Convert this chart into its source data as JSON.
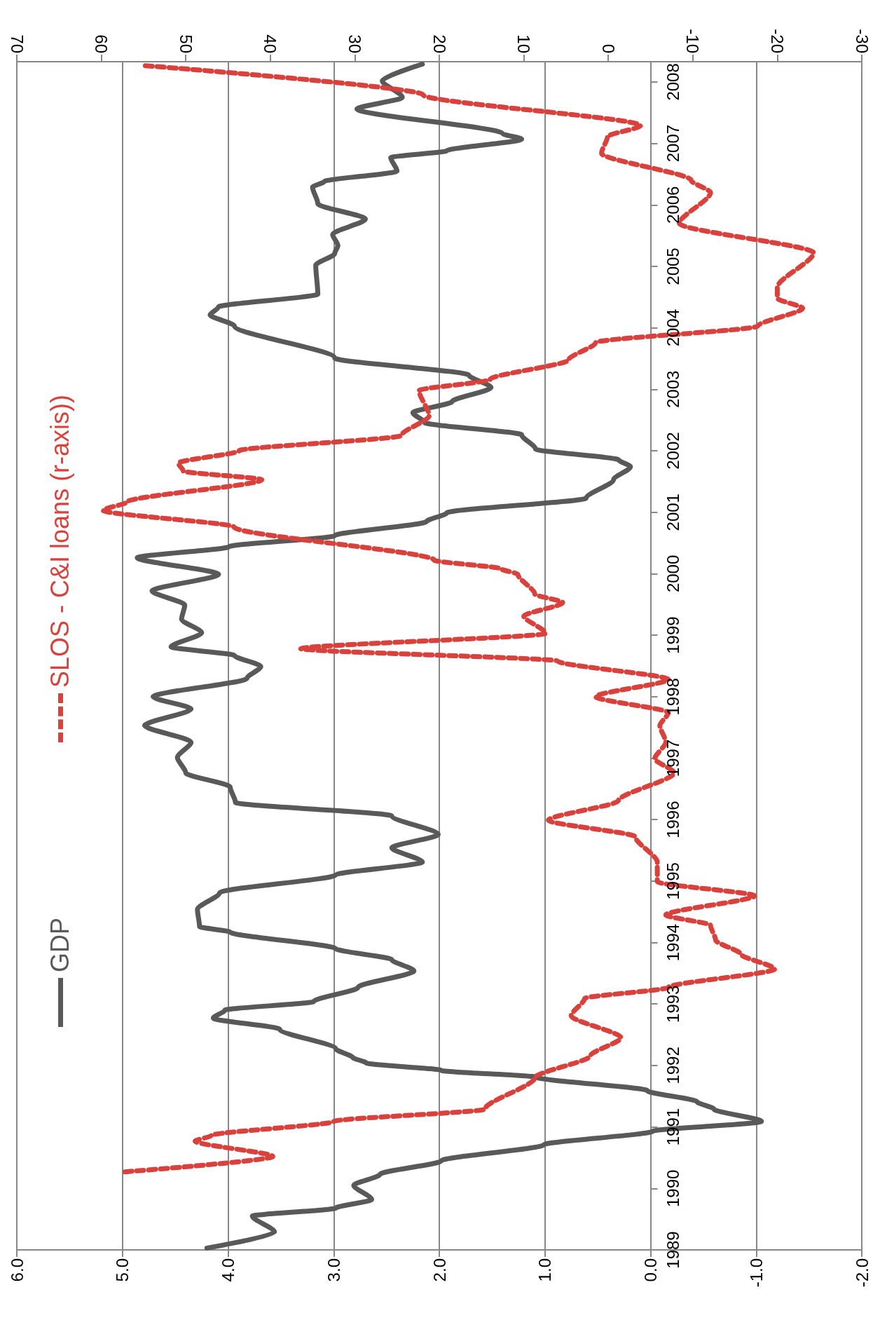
{
  "chart_data": {
    "type": "line",
    "xlim": [
      6,
      -2
    ],
    "xticks": [
      {
        "value": 6,
        "label": "6.0"
      },
      {
        "value": 5,
        "label": "5.0"
      },
      {
        "value": 4,
        "label": "4.0"
      },
      {
        "value": 3,
        "label": "3.0"
      },
      {
        "value": 2,
        "label": "2.0"
      },
      {
        "value": 1,
        "label": "1.0"
      },
      {
        "value": 0,
        "label": "0.0"
      },
      {
        "value": -1,
        "label": "-1.0"
      },
      {
        "value": -2,
        "label": "-2.0"
      }
    ],
    "x2lim": [
      70,
      -30
    ],
    "x2ticks": [
      70,
      60,
      50,
      40,
      30,
      20,
      10,
      0,
      -10,
      -20,
      -30
    ],
    "ylim": [
      1989,
      2008.33
    ],
    "yticks": [
      1989,
      1990,
      1991,
      1992,
      1993,
      1994,
      1995,
      1996,
      1997,
      1998,
      1999,
      2000,
      2001,
      2002,
      2003,
      2004,
      2005,
      2006,
      2007,
      2008
    ],
    "grid": "x",
    "legend": "left",
    "marker": "none",
    "series": [
      {
        "name": "GDP",
        "color": "#595959",
        "line_style": "solid",
        "x": [
          4.2,
          3.56,
          3.77,
          2.98,
          2.64,
          2.81,
          2.56,
          1.98,
          1.01,
          -0.02,
          -1.05,
          -0.6,
          -0.44,
          0.03,
          1.08,
          1.98,
          2.69,
          2.82,
          2.98,
          3.51,
          4.14,
          4.03,
          3.19,
          2.77,
          2.24,
          2.45,
          2.98,
          3.98,
          4.27,
          4.29,
          4.08,
          2.98,
          2.16,
          2.45,
          2.01,
          2.45,
          3.93,
          3.98,
          4.4,
          4.48,
          4.35,
          4.79,
          4.35,
          4.71,
          3.82,
          3.69,
          3.94,
          4.54,
          4.25,
          4.44,
          4.41,
          4.72,
          4.09,
          4.86,
          3.99,
          2.99,
          2.12,
          1.93,
          0.61,
          0.35,
          0.19,
          0.3,
          1.09,
          1.22,
          2.14,
          2.25,
          1.88,
          1.51,
          1.72,
          2.99,
          3.94,
          4.17,
          4.09,
          3.15,
          3.17,
          2.99,
          2.96,
          3.01,
          2.7,
          3.15,
          3.2,
          3.09,
          2.4,
          2.46,
          1.93,
          1.22,
          1.4,
          2.78,
          2.35,
          2.54,
          2.16
        ],
        "values": [
          1989.03,
          1989.29,
          1989.55,
          1989.68,
          1989.82,
          1990.05,
          1990.23,
          1990.45,
          1990.71,
          1990.93,
          1991.09,
          1991.29,
          1991.41,
          1991.59,
          1991.81,
          1991.92,
          1992.04,
          1992.13,
          1992.27,
          1992.59,
          1992.77,
          1992.9,
          1993.04,
          1993.27,
          1993.54,
          1993.72,
          1993.9,
          1994.17,
          1994.26,
          1994.54,
          1994.81,
          1995.1,
          1995.31,
          1995.54,
          1995.76,
          1996.06,
          1996.28,
          1996.53,
          1996.76,
          1997.01,
          1997.26,
          1997.53,
          1997.8,
          1998.0,
          1998.3,
          1998.49,
          1998.67,
          1998.81,
          1999.04,
          1999.26,
          1999.49,
          1999.72,
          1999.99,
          2000.26,
          2000.44,
          2000.62,
          2000.85,
          2000.99,
          2001.23,
          2001.53,
          2001.74,
          2001.85,
          2002.03,
          2002.26,
          2002.46,
          2002.62,
          2002.8,
          2003.03,
          2003.23,
          2003.51,
          2004.03,
          2004.21,
          2004.34,
          2004.55,
          2005.02,
          2005.21,
          2005.34,
          2005.52,
          2005.77,
          2006.02,
          2006.29,
          2006.38,
          2006.55,
          2006.77,
          2006.88,
          2007.07,
          2007.16,
          2007.56,
          2007.75,
          2008.02,
          2008.29
        ]
      },
      {
        "name": "SLOS - C&I loans (r-axis))",
        "color": "#d9423c",
        "line_style": "dashed",
        "axis": "x2",
        "x": [
          57.2,
          39.7,
          48.9,
          47.0,
          32.5,
          14.6,
          8.7,
          2.1,
          -1.5,
          4.4,
          2.8,
          -7.1,
          -19.7,
          -15.7,
          -12.7,
          -12.1,
          -6.8,
          -17.3,
          -5.8,
          -5.8,
          -3.2,
          7.1,
          -1.2,
          -7.8,
          -5.5,
          -6.8,
          -6.1,
          -7.1,
          1.5,
          -7.1,
          6.0,
          36.4,
          7.4,
          10.0,
          5.4,
          8.7,
          10.7,
          12.7,
          20.6,
          44.3,
          59.8,
          56.9,
          41.0,
          50.3,
          50.9,
          43.7,
          24.5,
          21.2,
          22.4,
          14.0,
          4.7,
          1.5,
          -17.7,
          -23.0,
          -20.0,
          -20.0,
          -24.3,
          -8.4,
          -12.1,
          -9.8,
          0.8,
          0.1,
          -3.8,
          21.9,
          55.2
        ],
        "values": [
          1990.27,
          1990.52,
          1990.77,
          1990.86,
          1991.09,
          1991.29,
          1991.8,
          1992.16,
          1992.45,
          1992.81,
          1993.09,
          1993.27,
          1993.57,
          1993.81,
          1994.04,
          1994.28,
          1994.45,
          1994.76,
          1994.99,
          1995.31,
          1995.72,
          1995.99,
          1996.31,
          1996.76,
          1996.99,
          1997.26,
          1997.53,
          1997.74,
          1998.0,
          1998.28,
          1998.58,
          1998.78,
          1999.03,
          1999.31,
          1999.53,
          1999.67,
          1999.99,
          2000.08,
          2000.22,
          2000.76,
          2001.03,
          2001.17,
          2001.53,
          2001.67,
          2001.8,
          2002.0,
          2002.25,
          2002.57,
          2002.98,
          2003.16,
          2003.48,
          2003.76,
          2004.03,
          2004.32,
          2004.48,
          2004.66,
          2005.22,
          2005.7,
          2006.2,
          2006.4,
          2006.84,
          2007.11,
          2007.29,
          2007.79,
          2008.27
        ]
      }
    ]
  }
}
